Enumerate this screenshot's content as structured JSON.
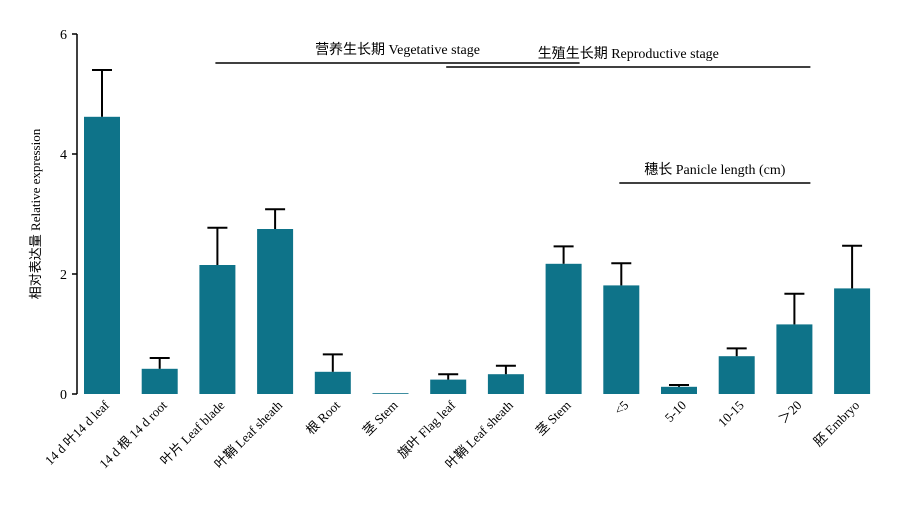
{
  "colors": {
    "bar": "#0e7389",
    "axis": "#000000",
    "errorbar": "#000000"
  },
  "chart_data": {
    "type": "bar",
    "ylabel": "相对表达量 Relative expression",
    "ylim": [
      0,
      6
    ],
    "yticks": [
      "0",
      "2",
      "4",
      "6"
    ],
    "categories": [
      "14 d 叶14 d leaf",
      "14 d 根 14 d root",
      "叶片 Leaf blade",
      "叶鞘 Leaf sheath",
      "根 Root",
      "茎 Stem",
      "旗叶 Flag leaf",
      "叶鞘 Leaf sheath",
      "茎 Stem",
      "<5",
      "5-10",
      "10-15",
      "＞20",
      "胚 Embryo"
    ],
    "values": [
      4.62,
      0.42,
      2.15,
      2.75,
      0.37,
      0.0,
      0.24,
      0.33,
      2.17,
      1.81,
      0.12,
      0.63,
      1.16,
      1.76
    ],
    "errors": [
      0.78,
      0.18,
      0.62,
      0.33,
      0.29,
      0.0,
      0.09,
      0.14,
      0.29,
      0.37,
      0.03,
      0.13,
      0.51,
      0.71
    ],
    "annotations": [
      {
        "text": "营养生长期 Vegetative stage",
        "spans": [
          "叶片 Leaf blade",
          "茎 Stem"
        ]
      },
      {
        "text": "生殖生长期 Reproductive stage",
        "spans": [
          "旗叶 Flag leaf",
          "＞20"
        ]
      },
      {
        "text": "穗长 Panicle length (cm)",
        "spans": [
          "<5",
          "＞20"
        ]
      }
    ]
  }
}
